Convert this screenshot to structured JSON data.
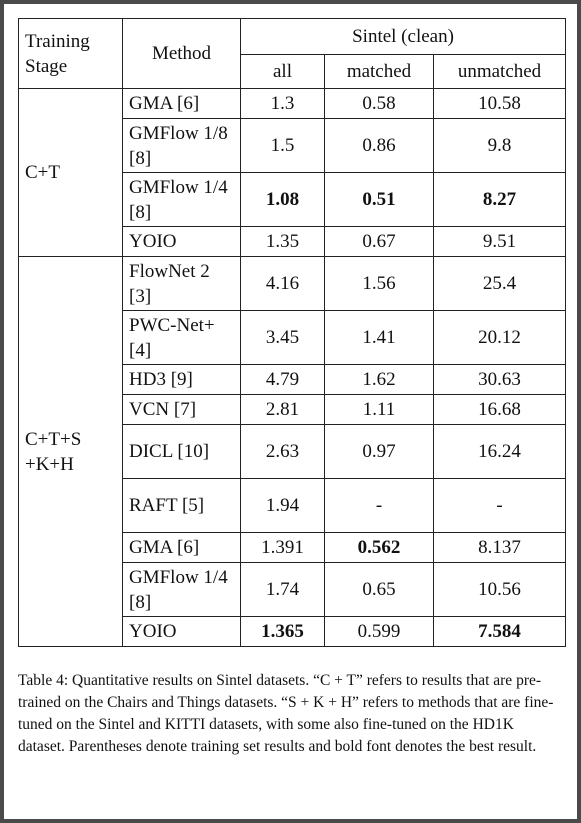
{
  "table": {
    "header": {
      "stage": "Training Stage",
      "method": "Method",
      "group": "Sintel (clean)",
      "cols": [
        "all",
        "matched",
        "unmatched"
      ]
    },
    "groups": [
      {
        "stage": "C+T",
        "rows": [
          {
            "method": "GMA [6]",
            "all": "1.3",
            "matched": "0.58",
            "unmatched": "10.58",
            "bold": []
          },
          {
            "method": "GMFlow 1/8 [8]",
            "all": "1.5",
            "matched": "0.86",
            "unmatched": "9.8",
            "bold": []
          },
          {
            "method": "GMFlow 1/4 [8]",
            "all": "1.08",
            "matched": "0.51",
            "unmatched": "8.27",
            "bold": [
              "all",
              "matched",
              "unmatched"
            ]
          },
          {
            "method": "YOIO",
            "all": "1.35",
            "matched": "0.67",
            "unmatched": "9.51",
            "bold": []
          }
        ]
      },
      {
        "stage": "C+T+S +K+H",
        "rows": [
          {
            "method": "FlowNet 2 [3]",
            "all": "4.16",
            "matched": "1.56",
            "unmatched": "25.4",
            "bold": []
          },
          {
            "method": "PWC-Net+ [4]",
            "all": "3.45",
            "matched": "1.41",
            "unmatched": "20.12",
            "bold": []
          },
          {
            "method": "HD3 [9]",
            "all": "4.79",
            "matched": "1.62",
            "unmatched": "30.63",
            "bold": []
          },
          {
            "method": "VCN [7]",
            "all": "2.81",
            "matched": "1.11",
            "unmatched": "16.68",
            "bold": []
          },
          {
            "method": "DICL [10]",
            "all": "2.63",
            "matched": "0.97",
            "unmatched": "16.24",
            "bold": []
          },
          {
            "method": "RAFT [5]",
            "all": "1.94",
            "matched": "-",
            "unmatched": "-",
            "bold": []
          },
          {
            "method": "GMA [6]",
            "all": "1.391",
            "matched": "0.562",
            "unmatched": "8.137",
            "bold": [
              "matched"
            ]
          },
          {
            "method": "GMFlow 1/4 [8]",
            "all": "1.74",
            "matched": "0.65",
            "unmatched": "10.56",
            "bold": []
          },
          {
            "method": "YOIO",
            "all": "1.365",
            "matched": "0.599",
            "unmatched": "7.584",
            "bold": [
              "all",
              "unmatched"
            ]
          }
        ]
      }
    ]
  },
  "caption": "Table 4: Quantitative results on Sintel datasets. “C + T” refers to results that are pre-trained on the Chairs and Things datasets. “S + K + H” refers to methods that are fine-tuned on the Sintel and KITTI datasets, with some also fine-tuned on the HD1K dataset. Parentheses denote training set results and bold font denotes the best result."
}
